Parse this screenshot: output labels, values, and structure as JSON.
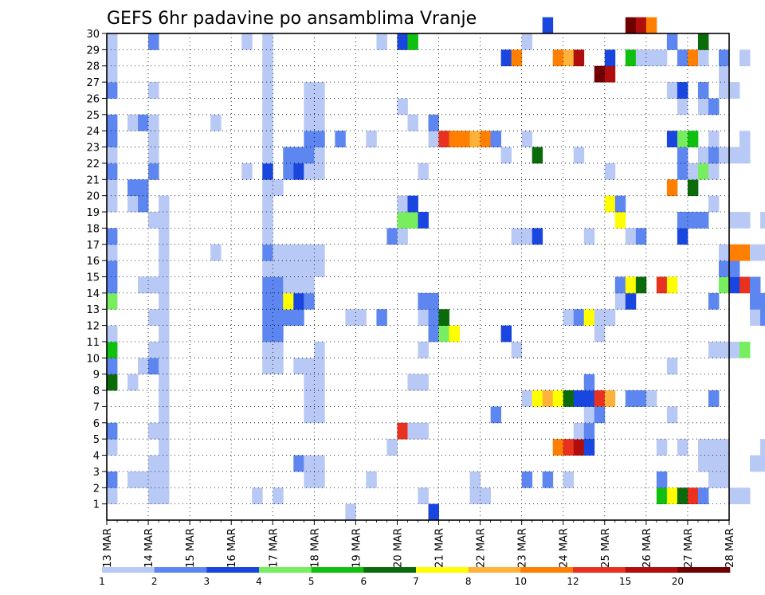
{
  "chart_data": {
    "type": "heatmap",
    "title": "GEFS 6hr padavine po ansamblima Vranje",
    "x_ticks": [
      "13 MAR",
      "14 MAR",
      "15 MAR",
      "16 MAR",
      "17 MAR",
      "18 MAR",
      "19 MAR",
      "20 MAR",
      "21 MAR",
      "22 MAR",
      "23 MAR",
      "24 MAR",
      "25 MAR",
      "26 MAR",
      "27 MAR",
      "28 MAR"
    ],
    "y_ticks": [
      1,
      2,
      3,
      4,
      5,
      6,
      7,
      8,
      9,
      10,
      11,
      12,
      13,
      14,
      15,
      16,
      17,
      18,
      19,
      20,
      21,
      22,
      23,
      24,
      25,
      26,
      27,
      28,
      29,
      30
    ],
    "x_range": [
      "13 MAR 00Z",
      "28 MAR 00Z"
    ],
    "y_range": [
      0,
      30
    ],
    "time_step_hours": 6,
    "grid": "dotted",
    "colorbar": {
      "position": "bottom",
      "labels": [
        "1",
        "2",
        "3",
        "4",
        "5",
        "6",
        "7",
        "8",
        "10",
        "12",
        "15",
        "20"
      ],
      "colors": [
        "#b9c9f6",
        "#5d86f0",
        "#1a46e0",
        "#76ee60",
        "#10c010",
        "#0b6b0b",
        "#ffff00",
        "#ffb23a",
        "#ff7f00",
        "#e8311f",
        "#b00d0d",
        "#6e0000"
      ]
    },
    "cells": [
      [
        0,
        1,
        0
      ],
      [
        0,
        2,
        1
      ],
      [
        0,
        4,
        0
      ],
      [
        0,
        5,
        1
      ],
      [
        0,
        8,
        5
      ],
      [
        0,
        9,
        1
      ],
      [
        0,
        10,
        4
      ],
      [
        0,
        11,
        0
      ],
      [
        0,
        13,
        3
      ],
      [
        0,
        14,
        1
      ],
      [
        0,
        15,
        1
      ],
      [
        0,
        16,
        0
      ],
      [
        0,
        17,
        1
      ],
      [
        0,
        19,
        0
      ],
      [
        0,
        20,
        0
      ],
      [
        0,
        21,
        1
      ],
      [
        0,
        22,
        0
      ],
      [
        0,
        23,
        1
      ],
      [
        0,
        24,
        1
      ],
      [
        0,
        26,
        1
      ],
      [
        0,
        27,
        0
      ],
      [
        0,
        28,
        0
      ],
      [
        0,
        29,
        0
      ],
      [
        2,
        2,
        0
      ],
      [
        2,
        8,
        0
      ],
      [
        2,
        19,
        0
      ],
      [
        2,
        20,
        1
      ],
      [
        2,
        24,
        0
      ],
      [
        3,
        2,
        0
      ],
      [
        3,
        9,
        0
      ],
      [
        3,
        14,
        0
      ],
      [
        3,
        19,
        1
      ],
      [
        3,
        20,
        1
      ],
      [
        3,
        24,
        1
      ],
      [
        4,
        1,
        0
      ],
      [
        4,
        2,
        0
      ],
      [
        4,
        3,
        0
      ],
      [
        4,
        5,
        0
      ],
      [
        4,
        9,
        1
      ],
      [
        4,
        10,
        0
      ],
      [
        4,
        12,
        0
      ],
      [
        4,
        14,
        0
      ],
      [
        4,
        18,
        0
      ],
      [
        4,
        21,
        1
      ],
      [
        4,
        22,
        0
      ],
      [
        4,
        23,
        0
      ],
      [
        4,
        24,
        0
      ],
      [
        4,
        26,
        0
      ],
      [
        4,
        29,
        1
      ],
      [
        5,
        1,
        0
      ],
      [
        5,
        2,
        0
      ],
      [
        5,
        3,
        0
      ],
      [
        5,
        4,
        0
      ],
      [
        5,
        5,
        0
      ],
      [
        5,
        6,
        0
      ],
      [
        5,
        7,
        0
      ],
      [
        5,
        8,
        0
      ],
      [
        5,
        9,
        0
      ],
      [
        5,
        10,
        0
      ],
      [
        5,
        11,
        0
      ],
      [
        5,
        12,
        0
      ],
      [
        5,
        13,
        0
      ],
      [
        5,
        14,
        0
      ],
      [
        5,
        15,
        0
      ],
      [
        5,
        16,
        0
      ],
      [
        5,
        17,
        0
      ],
      [
        5,
        18,
        0
      ],
      [
        5,
        19,
        0
      ],
      [
        10,
        16,
        0
      ],
      [
        10,
        24,
        0
      ],
      [
        13,
        21,
        0
      ],
      [
        13,
        29,
        0
      ],
      [
        14,
        1,
        0
      ],
      [
        15,
        9,
        0
      ],
      [
        15,
        10,
        0
      ],
      [
        15,
        11,
        1
      ],
      [
        15,
        12,
        1
      ],
      [
        15,
        13,
        1
      ],
      [
        15,
        14,
        1
      ],
      [
        15,
        15,
        0
      ],
      [
        15,
        16,
        1
      ],
      [
        15,
        17,
        0
      ],
      [
        15,
        18,
        0
      ],
      [
        15,
        19,
        0
      ],
      [
        15,
        20,
        0
      ],
      [
        15,
        21,
        2
      ],
      [
        15,
        22,
        0
      ],
      [
        15,
        23,
        0
      ],
      [
        15,
        24,
        0
      ],
      [
        15,
        25,
        0
      ],
      [
        15,
        26,
        0
      ],
      [
        15,
        27,
        0
      ],
      [
        15,
        28,
        0
      ],
      [
        15,
        29,
        0
      ],
      [
        16,
        1,
        0
      ],
      [
        16,
        9,
        0
      ],
      [
        16,
        10,
        0
      ],
      [
        16,
        11,
        1
      ],
      [
        16,
        12,
        1
      ],
      [
        16,
        13,
        1
      ],
      [
        16,
        14,
        1
      ],
      [
        16,
        15,
        0
      ],
      [
        16,
        16,
        0
      ],
      [
        16,
        20,
        0
      ],
      [
        17,
        12,
        1
      ],
      [
        17,
        13,
        6
      ],
      [
        17,
        14,
        0
      ],
      [
        17,
        15,
        0
      ],
      [
        17,
        16,
        0
      ],
      [
        17,
        21,
        1
      ],
      [
        17,
        22,
        1
      ],
      [
        18,
        3,
        1
      ],
      [
        18,
        9,
        0
      ],
      [
        18,
        12,
        1
      ],
      [
        18,
        13,
        2
      ],
      [
        18,
        14,
        0
      ],
      [
        18,
        15,
        0
      ],
      [
        18,
        16,
        0
      ],
      [
        18,
        21,
        2
      ],
      [
        18,
        22,
        1
      ],
      [
        19,
        2,
        0
      ],
      [
        19,
        3,
        0
      ],
      [
        19,
        6,
        0
      ],
      [
        19,
        7,
        0
      ],
      [
        19,
        8,
        0
      ],
      [
        19,
        9,
        0
      ],
      [
        19,
        13,
        1
      ],
      [
        19,
        14,
        0
      ],
      [
        19,
        15,
        0
      ],
      [
        19,
        16,
        0
      ],
      [
        19,
        21,
        0
      ],
      [
        19,
        22,
        1
      ],
      [
        19,
        23,
        1
      ],
      [
        19,
        24,
        0
      ],
      [
        19,
        25,
        0
      ],
      [
        19,
        26,
        0
      ],
      [
        20,
        2,
        0
      ],
      [
        20,
        3,
        0
      ],
      [
        20,
        6,
        0
      ],
      [
        20,
        7,
        0
      ],
      [
        20,
        8,
        0
      ],
      [
        20,
        9,
        0
      ],
      [
        20,
        10,
        0
      ],
      [
        20,
        15,
        0
      ],
      [
        20,
        16,
        0
      ],
      [
        20,
        21,
        0
      ],
      [
        20,
        22,
        0
      ],
      [
        20,
        23,
        1
      ],
      [
        20,
        24,
        0
      ],
      [
        20,
        25,
        0
      ],
      [
        20,
        26,
        0
      ],
      [
        22,
        23,
        1
      ],
      [
        23,
        0,
        0
      ],
      [
        23,
        12,
        0
      ],
      [
        24,
        12,
        0
      ],
      [
        25,
        2,
        0
      ],
      [
        25,
        23,
        0
      ],
      [
        26,
        12,
        1
      ],
      [
        26,
        29,
        0
      ],
      [
        27,
        4,
        0
      ],
      [
        27,
        17,
        1
      ],
      [
        28,
        5,
        9
      ],
      [
        28,
        17,
        0
      ],
      [
        28,
        18,
        3
      ],
      [
        28,
        19,
        0
      ],
      [
        28,
        25,
        0
      ],
      [
        28,
        29,
        2
      ],
      [
        29,
        5,
        0
      ],
      [
        29,
        8,
        0
      ],
      [
        29,
        18,
        3
      ],
      [
        29,
        19,
        2
      ],
      [
        29,
        24,
        0
      ],
      [
        29,
        29,
        4
      ],
      [
        30,
        1,
        0
      ],
      [
        30,
        5,
        0
      ],
      [
        30,
        8,
        0
      ],
      [
        30,
        10,
        0
      ],
      [
        30,
        12,
        0
      ],
      [
        30,
        13,
        1
      ],
      [
        30,
        18,
        2
      ],
      [
        30,
        21,
        0
      ],
      [
        31,
        0,
        2
      ],
      [
        31,
        11,
        1
      ],
      [
        31,
        12,
        1
      ],
      [
        31,
        13,
        1
      ],
      [
        31,
        23,
        0
      ],
      [
        31,
        24,
        1
      ],
      [
        32,
        11,
        3
      ],
      [
        32,
        12,
        5
      ],
      [
        32,
        23,
        9
      ],
      [
        33,
        11,
        6
      ],
      [
        33,
        23,
        8
      ],
      [
        34,
        23,
        8
      ],
      [
        35,
        1,
        0
      ],
      [
        35,
        2,
        0
      ],
      [
        35,
        23,
        7
      ],
      [
        36,
        1,
        0
      ],
      [
        36,
        23,
        8
      ],
      [
        37,
        6,
        1
      ],
      [
        37,
        23,
        1
      ],
      [
        38,
        11,
        2
      ],
      [
        38,
        22,
        0
      ],
      [
        38,
        28,
        2
      ],
      [
        39,
        10,
        0
      ],
      [
        39,
        17,
        0
      ],
      [
        39,
        28,
        8
      ],
      [
        40,
        2,
        1
      ],
      [
        40,
        7,
        0
      ],
      [
        40,
        17,
        0
      ],
      [
        40,
        23,
        0
      ],
      [
        40,
        29,
        0
      ],
      [
        41,
        7,
        6
      ],
      [
        41,
        17,
        2
      ],
      [
        41,
        22,
        5
      ],
      [
        42,
        7,
        7
      ],
      [
        42,
        2,
        1
      ],
      [
        42,
        30,
        2
      ],
      [
        43,
        7,
        6
      ],
      [
        43,
        4,
        8
      ],
      [
        43,
        28,
        8
      ],
      [
        44,
        7,
        5
      ],
      [
        44,
        4,
        9
      ],
      [
        44,
        12,
        0
      ],
      [
        44,
        2,
        0
      ],
      [
        44,
        28,
        7
      ],
      [
        45,
        7,
        2
      ],
      [
        45,
        4,
        10
      ],
      [
        45,
        5,
        0
      ],
      [
        45,
        12,
        1
      ],
      [
        45,
        22,
        0
      ],
      [
        45,
        28,
        10
      ],
      [
        46,
        5,
        1
      ],
      [
        46,
        6,
        0
      ],
      [
        46,
        7,
        2
      ],
      [
        46,
        8,
        1
      ],
      [
        46,
        12,
        6
      ],
      [
        46,
        17,
        0
      ],
      [
        46,
        4,
        2
      ],
      [
        47,
        7,
        9
      ],
      [
        47,
        12,
        0
      ],
      [
        47,
        6,
        1
      ],
      [
        47,
        11,
        0
      ],
      [
        47,
        27,
        11
      ],
      [
        48,
        7,
        7
      ],
      [
        48,
        12,
        0
      ],
      [
        48,
        19,
        6
      ],
      [
        48,
        21,
        0
      ],
      [
        48,
        27,
        10
      ],
      [
        48,
        28,
        2
      ],
      [
        49,
        13,
        0
      ],
      [
        49,
        14,
        1
      ],
      [
        49,
        18,
        6
      ],
      [
        49,
        19,
        1
      ],
      [
        50,
        7,
        1
      ],
      [
        50,
        13,
        2
      ],
      [
        50,
        14,
        6
      ],
      [
        50,
        17,
        0
      ],
      [
        50,
        28,
        4
      ],
      [
        50,
        30,
        11
      ],
      [
        51,
        7,
        1
      ],
      [
        51,
        14,
        5
      ],
      [
        51,
        17,
        1
      ],
      [
        51,
        28,
        0
      ],
      [
        51,
        30,
        10
      ],
      [
        52,
        7,
        0
      ],
      [
        52,
        28,
        0
      ],
      [
        52,
        30,
        8
      ],
      [
        53,
        1,
        4
      ],
      [
        53,
        4,
        0
      ],
      [
        53,
        2,
        1
      ],
      [
        53,
        14,
        9
      ],
      [
        53,
        28,
        0
      ],
      [
        54,
        1,
        6
      ],
      [
        54,
        6,
        0
      ],
      [
        54,
        9,
        0
      ],
      [
        54,
        14,
        6
      ],
      [
        54,
        20,
        8
      ],
      [
        54,
        23,
        2
      ],
      [
        54,
        26,
        0
      ],
      [
        54,
        29,
        1
      ],
      [
        55,
        1,
        5
      ],
      [
        55,
        4,
        0
      ],
      [
        55,
        17,
        2
      ],
      [
        55,
        18,
        1
      ],
      [
        55,
        21,
        1
      ],
      [
        55,
        22,
        1
      ],
      [
        55,
        23,
        3
      ],
      [
        55,
        25,
        0
      ],
      [
        55,
        26,
        2
      ],
      [
        55,
        28,
        1
      ],
      [
        56,
        1,
        9
      ],
      [
        56,
        18,
        1
      ],
      [
        56,
        20,
        5
      ],
      [
        56,
        21,
        0
      ],
      [
        56,
        23,
        4
      ],
      [
        56,
        28,
        8
      ],
      [
        57,
        1,
        1
      ],
      [
        57,
        3,
        0
      ],
      [
        57,
        4,
        0
      ],
      [
        57,
        18,
        1
      ],
      [
        57,
        21,
        3
      ],
      [
        57,
        22,
        0
      ],
      [
        57,
        25,
        0
      ],
      [
        57,
        26,
        1
      ],
      [
        57,
        28,
        0
      ],
      [
        57,
        29,
        5
      ],
      [
        58,
        2,
        0
      ],
      [
        58,
        3,
        0
      ],
      [
        58,
        4,
        0
      ],
      [
        58,
        7,
        1
      ],
      [
        58,
        10,
        0
      ],
      [
        58,
        13,
        1
      ],
      [
        58,
        19,
        0
      ],
      [
        58,
        21,
        0
      ],
      [
        58,
        22,
        1
      ],
      [
        58,
        23,
        0
      ],
      [
        58,
        25,
        1
      ],
      [
        59,
        2,
        0
      ],
      [
        59,
        3,
        0
      ],
      [
        59,
        4,
        0
      ],
      [
        59,
        10,
        0
      ],
      [
        59,
        14,
        3
      ],
      [
        59,
        15,
        1
      ],
      [
        59,
        16,
        0
      ],
      [
        59,
        22,
        0
      ],
      [
        59,
        26,
        0
      ],
      [
        59,
        27,
        0
      ],
      [
        59,
        28,
        1
      ],
      [
        60,
        1,
        0
      ],
      [
        60,
        10,
        0
      ],
      [
        60,
        14,
        2
      ],
      [
        60,
        15,
        1
      ],
      [
        60,
        16,
        8
      ],
      [
        60,
        18,
        0
      ],
      [
        60,
        22,
        0
      ],
      [
        60,
        26,
        0
      ],
      [
        61,
        1,
        0
      ],
      [
        61,
        10,
        3
      ],
      [
        61,
        14,
        9
      ],
      [
        61,
        16,
        8
      ],
      [
        61,
        18,
        0
      ],
      [
        61,
        22,
        0
      ],
      [
        61,
        23,
        0
      ],
      [
        61,
        28,
        0
      ],
      [
        62,
        3,
        0
      ],
      [
        62,
        12,
        0
      ],
      [
        62,
        13,
        1
      ],
      [
        62,
        14,
        1
      ],
      [
        62,
        16,
        0
      ],
      [
        63,
        3,
        0
      ],
      [
        63,
        4,
        0
      ],
      [
        63,
        12,
        1
      ],
      [
        63,
        13,
        1
      ],
      [
        63,
        16,
        0
      ],
      [
        63,
        18,
        0
      ],
      [
        64,
        4,
        1
      ],
      [
        64,
        9,
        0
      ],
      [
        64,
        10,
        0
      ],
      [
        64,
        15,
        0
      ],
      [
        64,
        22,
        0
      ],
      [
        64,
        23,
        0
      ],
      [
        65,
        4,
        0
      ],
      [
        65,
        9,
        0
      ],
      [
        65,
        12,
        0
      ],
      [
        65,
        15,
        1
      ],
      [
        65,
        16,
        0
      ],
      [
        65,
        22,
        1
      ],
      [
        65,
        24,
        0
      ]
    ]
  }
}
